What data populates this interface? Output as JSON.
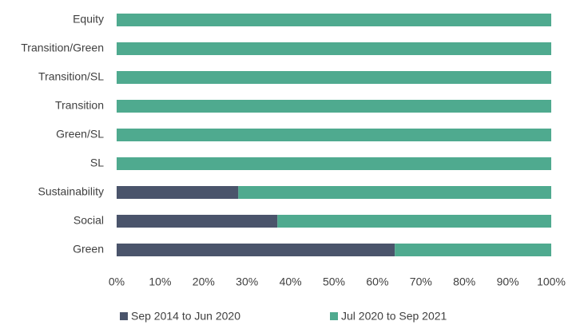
{
  "chart_data": {
    "type": "stacked-barh",
    "categories": [
      "Equity",
      "Transition/Green",
      "Transition/SL",
      "Transition",
      "Green/SL",
      "SL",
      "Sustainability",
      "Social",
      "Green"
    ],
    "series": [
      {
        "name": "Sep 2014 to Jun 2020",
        "color": "#4a546b",
        "values": [
          0,
          0,
          0,
          0,
          0,
          0,
          28,
          37,
          64
        ]
      },
      {
        "name": "Jul 2020 to Sep 2021",
        "color": "#4faa8f",
        "values": [
          100,
          100,
          100,
          100,
          100,
          100,
          72,
          63,
          36
        ]
      }
    ],
    "xlim": [
      0,
      100
    ],
    "xticks": [
      {
        "value": 0,
        "label": "0%"
      },
      {
        "value": 10,
        "label": "10%"
      },
      {
        "value": 20,
        "label": "20%"
      },
      {
        "value": 30,
        "label": "30%"
      },
      {
        "value": 40,
        "label": "40%"
      },
      {
        "value": 50,
        "label": "50%"
      },
      {
        "value": 60,
        "label": "60%"
      },
      {
        "value": 70,
        "label": "70%"
      },
      {
        "value": 80,
        "label": "80%"
      },
      {
        "value": 90,
        "label": "90%"
      },
      {
        "value": 100,
        "label": "100%"
      }
    ],
    "legend": "bottom"
  }
}
